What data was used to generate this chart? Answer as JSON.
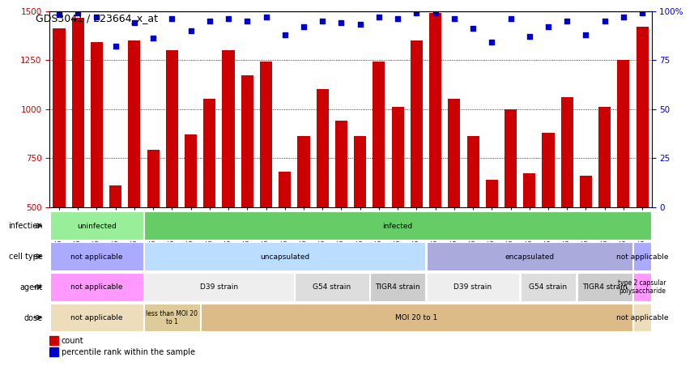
{
  "title": "GDS3041 / 223664_x_at",
  "samples": [
    "GSM211676",
    "GSM211677",
    "GSM211678",
    "GSM211682",
    "GSM211683",
    "GSM211696",
    "GSM211697",
    "GSM211698",
    "GSM211690",
    "GSM211691",
    "GSM211692",
    "GSM211670",
    "GSM211671",
    "GSM211672",
    "GSM211673",
    "GSM211674",
    "GSM211675",
    "GSM211687",
    "GSM211688",
    "GSM211689",
    "GSM211667",
    "GSM211668",
    "GSM211669",
    "GSM211679",
    "GSM211680",
    "GSM211681",
    "GSM211684",
    "GSM211685",
    "GSM211686",
    "GSM211693",
    "GSM211694",
    "GSM211695"
  ],
  "counts": [
    1410,
    1465,
    1340,
    610,
    1350,
    790,
    1300,
    870,
    1050,
    1300,
    1170,
    1240,
    680,
    860,
    1100,
    940,
    860,
    1240,
    1010,
    1350,
    1490,
    1050,
    860,
    640,
    1000,
    670,
    880,
    1060,
    660,
    1010,
    1250,
    1420
  ],
  "percentile_ranks": [
    98,
    99,
    97,
    82,
    94,
    86,
    96,
    90,
    95,
    96,
    95,
    97,
    88,
    92,
    95,
    94,
    93,
    97,
    96,
    99,
    99,
    96,
    91,
    84,
    96,
    87,
    92,
    95,
    88,
    95,
    97,
    99
  ],
  "bar_color": "#cc0000",
  "dot_color": "#0000cc",
  "ylim_left": [
    500,
    1500
  ],
  "ylim_right": [
    0,
    100
  ],
  "yticks_left": [
    500,
    750,
    1000,
    1250,
    1500
  ],
  "yticks_right": [
    0,
    25,
    50,
    75,
    100
  ],
  "annotation_rows": [
    {
      "label": "infection",
      "segments": [
        {
          "text": "uninfected",
          "start": 0,
          "end": 5,
          "color": "#99ee99"
        },
        {
          "text": "infected",
          "start": 5,
          "end": 32,
          "color": "#66cc66"
        }
      ]
    },
    {
      "label": "cell type",
      "segments": [
        {
          "text": "not applicable",
          "start": 0,
          "end": 5,
          "color": "#aaaaff"
        },
        {
          "text": "uncapsulated",
          "start": 5,
          "end": 20,
          "color": "#bbddff"
        },
        {
          "text": "encapsulated",
          "start": 20,
          "end": 31,
          "color": "#aaaadd"
        },
        {
          "text": "not applicable",
          "start": 31,
          "end": 32,
          "color": "#aaaaff"
        }
      ]
    },
    {
      "label": "agent",
      "segments": [
        {
          "text": "not applicable",
          "start": 0,
          "end": 5,
          "color": "#ff99ff"
        },
        {
          "text": "D39 strain",
          "start": 5,
          "end": 13,
          "color": "#eeeeee"
        },
        {
          "text": "G54 strain",
          "start": 13,
          "end": 17,
          "color": "#dddddd"
        },
        {
          "text": "TIGR4 strain",
          "start": 17,
          "end": 20,
          "color": "#cccccc"
        },
        {
          "text": "D39 strain",
          "start": 20,
          "end": 25,
          "color": "#eeeeee"
        },
        {
          "text": "G54 strain",
          "start": 25,
          "end": 28,
          "color": "#dddddd"
        },
        {
          "text": "TIGR4 strain",
          "start": 28,
          "end": 31,
          "color": "#cccccc"
        },
        {
          "text": "type 2 capsular\npolysaccharide",
          "start": 31,
          "end": 32,
          "color": "#ff99ff"
        }
      ]
    },
    {
      "label": "dose",
      "segments": [
        {
          "text": "not applicable",
          "start": 0,
          "end": 5,
          "color": "#eeddbb"
        },
        {
          "text": "less than MOI 20\nto 1",
          "start": 5,
          "end": 8,
          "color": "#ddcc99"
        },
        {
          "text": "MOI 20 to 1",
          "start": 8,
          "end": 31,
          "color": "#ddbb88"
        },
        {
          "text": "not applicable",
          "start": 31,
          "end": 32,
          "color": "#eeddbb"
        }
      ]
    }
  ],
  "legend": [
    {
      "color": "#cc0000",
      "label": "count"
    },
    {
      "color": "#0000cc",
      "label": "percentile rank within the sample"
    }
  ]
}
